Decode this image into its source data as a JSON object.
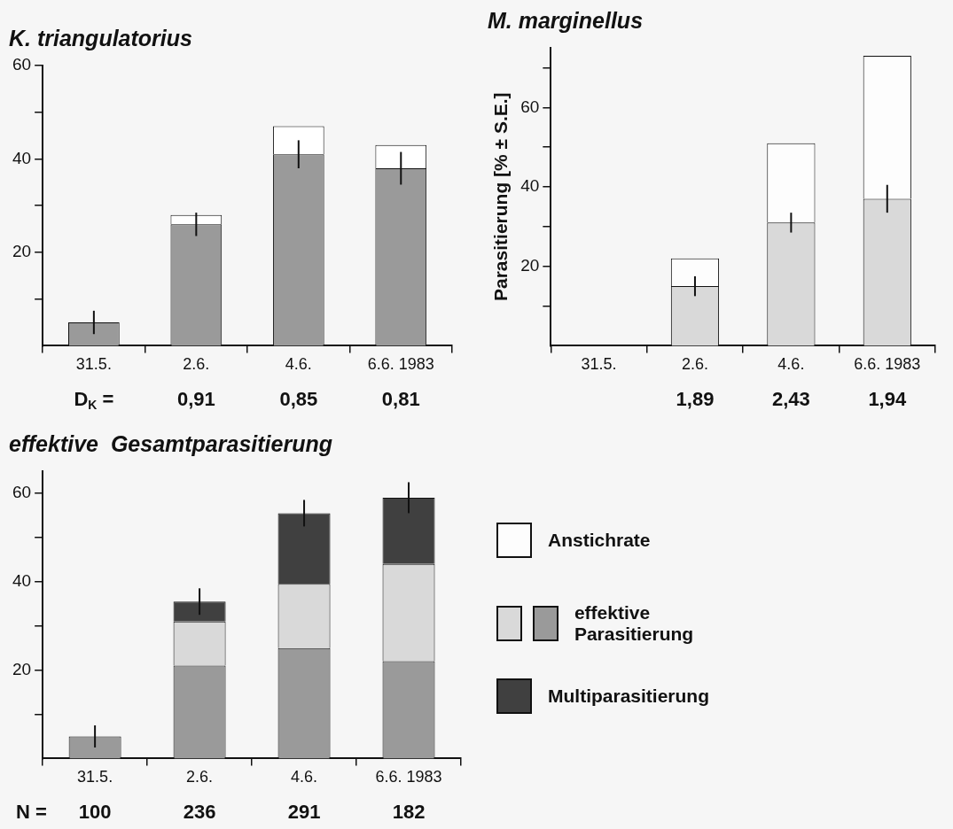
{
  "chart_data": [
    {
      "type": "bar",
      "title": "K. triangulatorius",
      "categories": [
        "31.5.",
        "2.6.",
        "4.6.",
        "6.6. 1983"
      ],
      "stacked": true,
      "series": [
        {
          "color": "#9a9a9a",
          "values": [
            5,
            26,
            41,
            38
          ],
          "errors": [
            2.5,
            2.5,
            3,
            3.5
          ]
        },
        {
          "color": "#ffffff",
          "values": [
            null,
            2,
            6,
            5
          ]
        }
      ],
      "ylim": [
        0,
        60
      ],
      "yticks": [
        {
          "value": 10,
          "label": null
        },
        20,
        {
          "value": 30,
          "label": null
        },
        40,
        {
          "value": 50,
          "label": null
        },
        60
      ],
      "annotations": [
        "D$_{K}$ =",
        "0,91",
        "0,85",
        "0,81"
      ]
    },
    {
      "type": "bar",
      "title": "M. marginellus",
      "ylabel": "Parasitierung [% ± S.E.]",
      "categories": [
        "31.5.",
        "2.6.",
        "4.6.",
        "6.6. 1983"
      ],
      "stacked": true,
      "series": [
        {
          "color": "#d9d9d9",
          "values": [
            null,
            15,
            31,
            37
          ],
          "errors": [
            null,
            2.5,
            2.5,
            3.5
          ]
        },
        {
          "name": "Anstichrate",
          "color": "#fdfdfd",
          "values": [
            null,
            7,
            20,
            36
          ]
        }
      ],
      "ylim": [
        0,
        75
      ],
      "yticks": [
        {
          "value": 10,
          "label": null
        },
        20,
        {
          "value": 30,
          "label": null
        },
        40,
        {
          "value": 50,
          "label": null
        },
        60,
        {
          "value": 70,
          "label": null
        }
      ],
      "legend": "bottom",
      "annotations": [
        "1,89",
        "2,43",
        "1,94"
      ]
    },
    {
      "type": "bar",
      "title": "effektive  Gesamtparasitierung",
      "categories": [
        "31.5.",
        "2.6.",
        "4.6.",
        "6.6. 1983"
      ],
      "stacked": true,
      "series": [
        {
          "name": "effektive Parasitierung",
          "color": "#9a9a9a",
          "values": [
            5,
            21,
            25,
            22
          ],
          "errors": [
            2.5,
            null,
            null,
            null
          ]
        },
        {
          "color": "#d9d9d9",
          "values": [
            null,
            10,
            14.5,
            22
          ]
        },
        {
          "name": "Multiparasitierung",
          "color": "#404040",
          "values": [
            null,
            4.5,
            16,
            15
          ],
          "errors": [
            null,
            3,
            3,
            3.5
          ]
        }
      ],
      "ylim": [
        0,
        65
      ],
      "yticks": [
        {
          "value": 10,
          "label": null
        },
        20,
        {
          "value": 30,
          "label": null
        },
        40,
        {
          "value": 50,
          "label": null
        },
        60
      ],
      "legend": "right",
      "annotations": [
        "N =",
        "100",
        "236",
        "291",
        "182"
      ]
    }
  ]
}
